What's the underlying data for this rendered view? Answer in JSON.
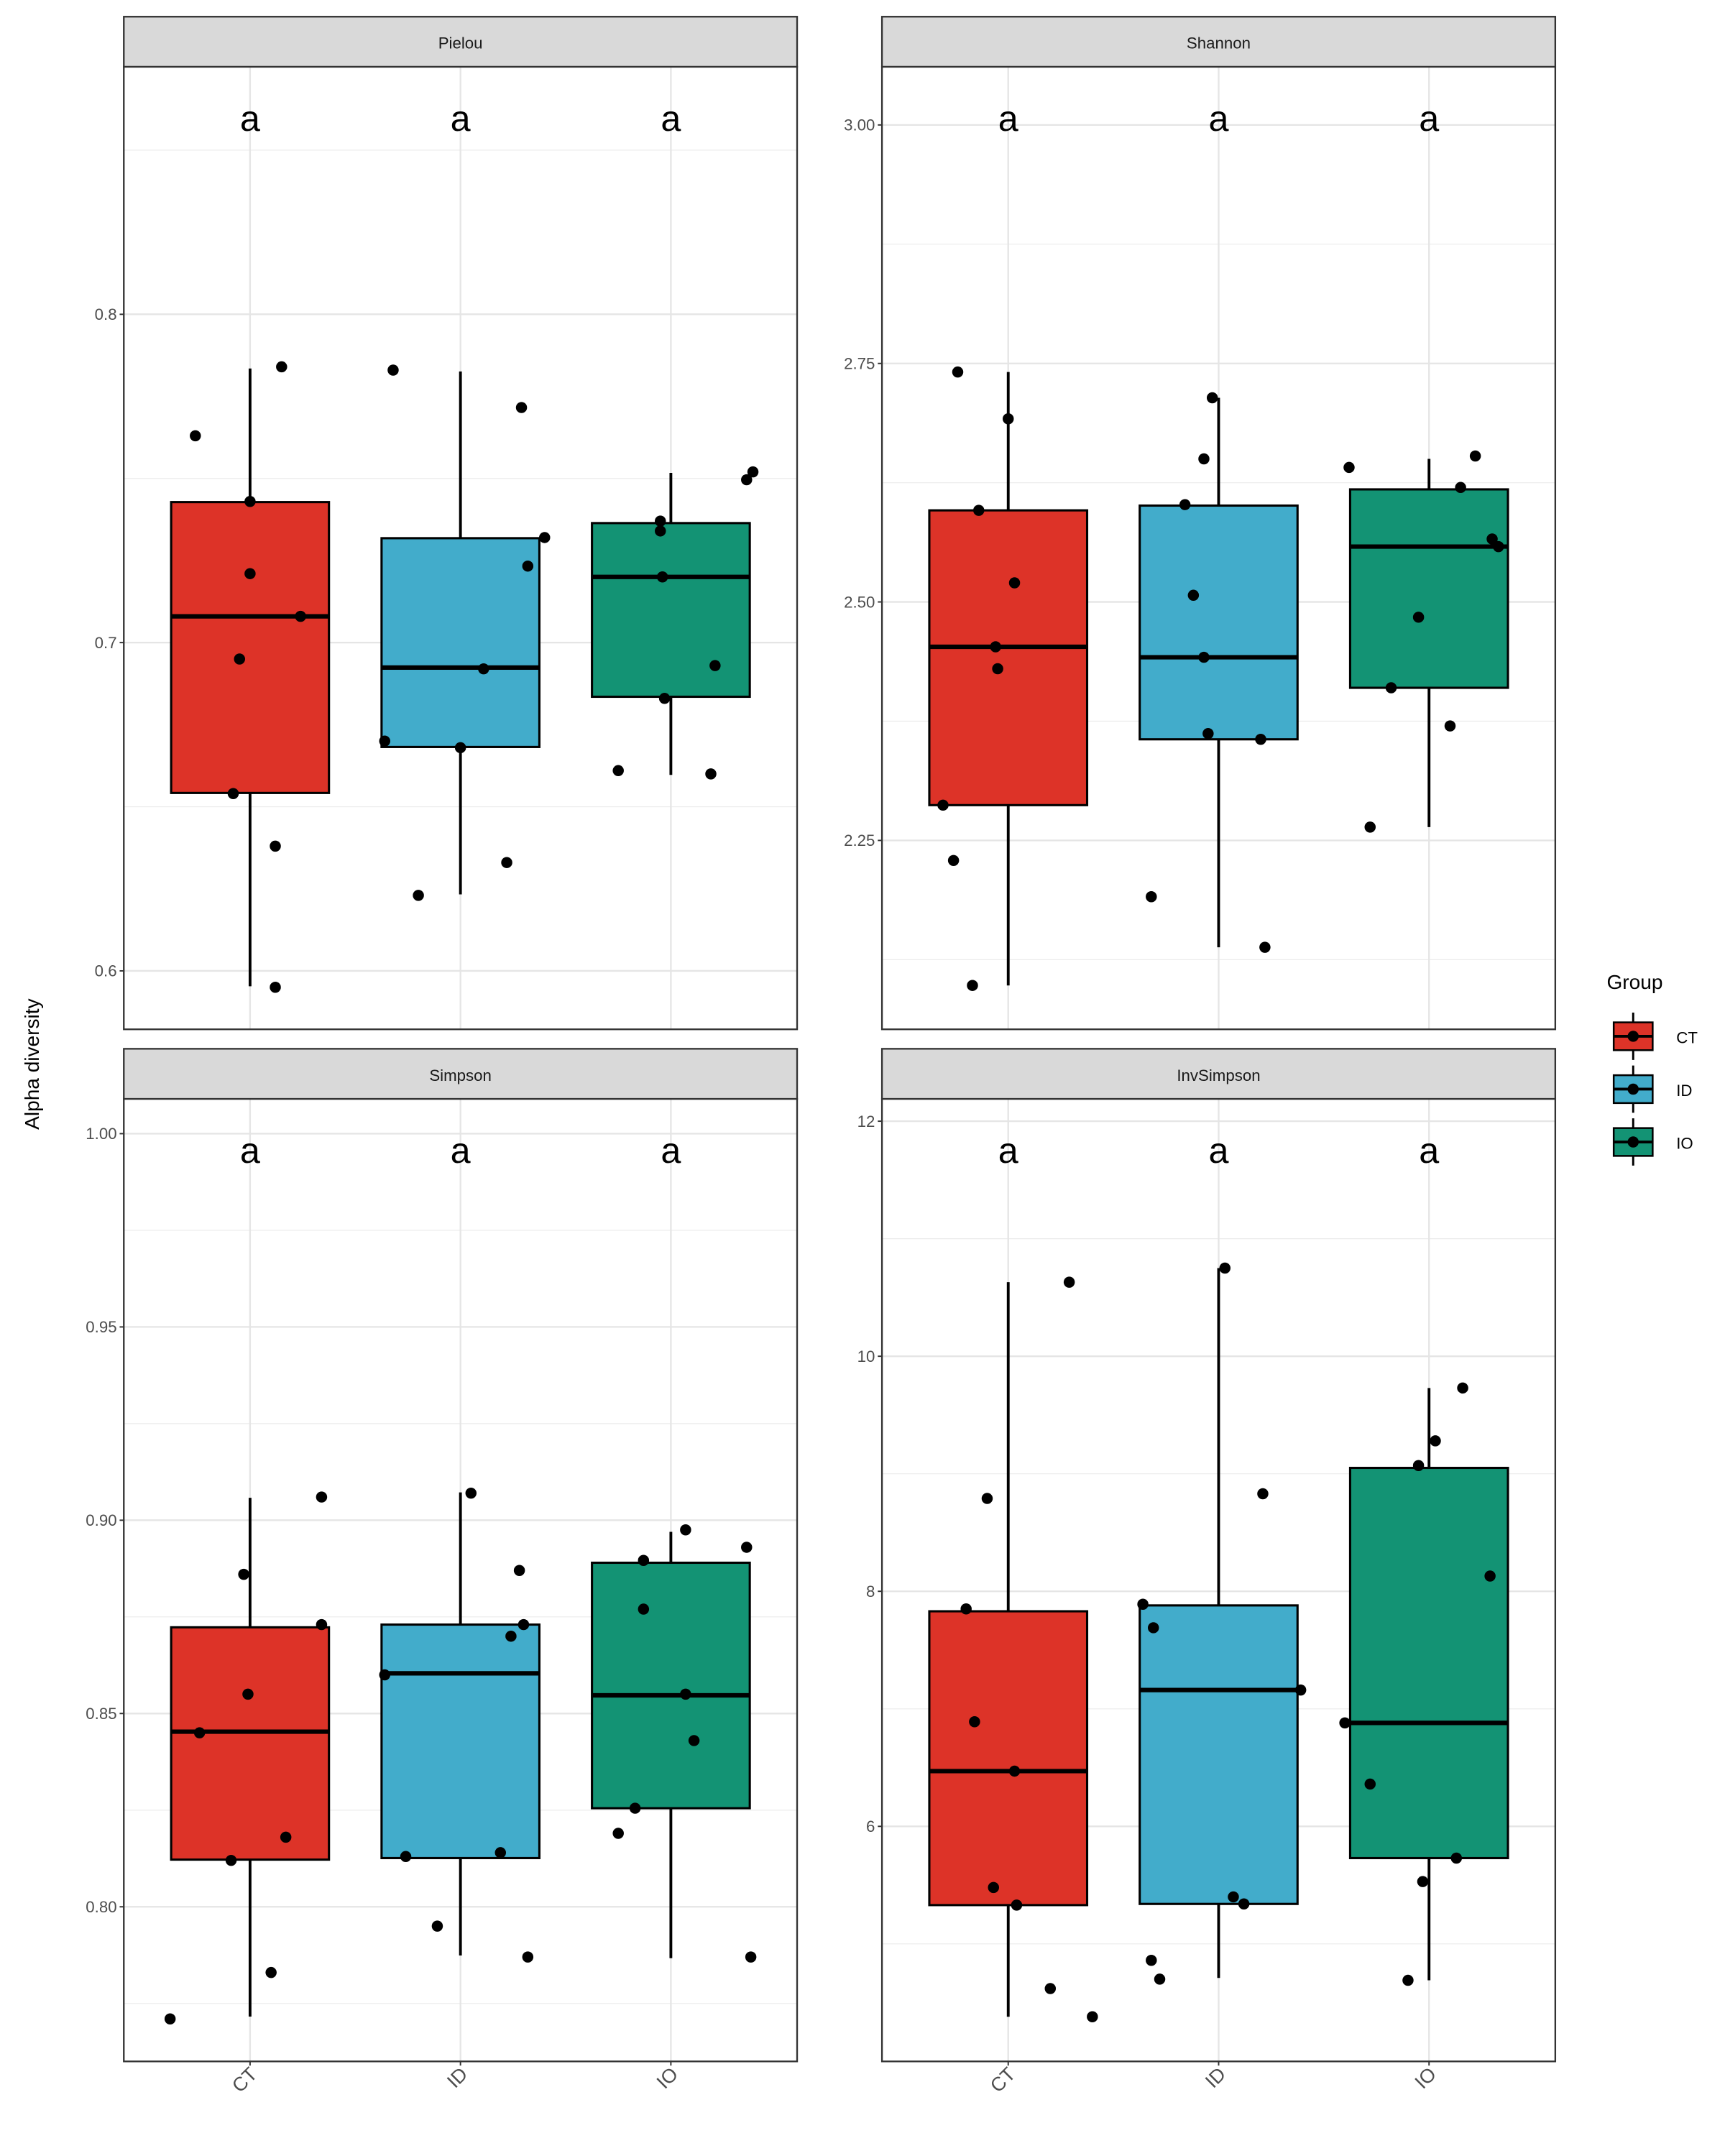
{
  "ylabel": "Alpha diversity",
  "x_tick_labels": [
    "CT",
    "ID",
    "IO"
  ],
  "legend": {
    "title": "Group",
    "items": [
      {
        "label": "CT",
        "color": "#DD3328"
      },
      {
        "label": "ID",
        "color": "#42ACCB"
      },
      {
        "label": "IO",
        "color": "#139374"
      }
    ]
  },
  "chart_data": [
    {
      "type": "box",
      "title": "Pielou",
      "categories": [
        "CT",
        "ID",
        "IO"
      ],
      "ylim": [
        0.5822,
        0.8754
      ],
      "yticks": [
        0.6,
        0.7,
        0.8
      ],
      "ytick_labels": [
        "0.6",
        "0.7",
        "0.8"
      ],
      "letters": [
        "a",
        "a",
        "a"
      ],
      "boxes": [
        {
          "group": "CT",
          "q1": 0.6542,
          "median": 0.708,
          "q3": 0.7428,
          "whisker_low": 0.5953,
          "whisker_high": 0.7835,
          "points": [
            [
              -0.26,
              0.763
            ],
            [
              0.15,
              0.784
            ],
            [
              0,
              0.743
            ],
            [
              0,
              0.721
            ],
            [
              0.24,
              0.708
            ],
            [
              -0.05,
              0.695
            ],
            [
              -0.08,
              0.654
            ],
            [
              0.12,
              0.638
            ],
            [
              0.12,
              0.595
            ]
          ]
        },
        {
          "group": "ID",
          "q1": 0.6682,
          "median": 0.6924,
          "q3": 0.7318,
          "whisker_low": 0.6233,
          "whisker_high": 0.7826,
          "points": [
            [
              -0.32,
              0.783
            ],
            [
              0.29,
              0.7716
            ],
            [
              0.4,
              0.732
            ],
            [
              0.32,
              0.7233
            ],
            [
              0.11,
              0.692
            ],
            [
              -0.36,
              0.67
            ],
            [
              0,
              0.668
            ],
            [
              0.22,
              0.633
            ],
            [
              -0.2,
              0.623
            ]
          ]
        },
        {
          "group": "IO",
          "q1": 0.6835,
          "median": 0.72,
          "q3": 0.7364,
          "whisker_low": 0.6597,
          "whisker_high": 0.7517,
          "points": [
            [
              0.39,
              0.752
            ],
            [
              0.36,
              0.7496
            ],
            [
              -0.05,
              0.737
            ],
            [
              -0.05,
              0.734
            ],
            [
              -0.04,
              0.72
            ],
            [
              0.21,
              0.693
            ],
            [
              -0.03,
              0.683
            ],
            [
              -0.25,
              0.661
            ],
            [
              0.19,
              0.66
            ]
          ]
        }
      ]
    },
    {
      "type": "box",
      "title": "Shannon",
      "categories": [
        "CT",
        "ID",
        "IO"
      ],
      "ylim": [
        2.052,
        3.061
      ],
      "yticks": [
        2.25,
        2.5,
        2.75,
        3.0
      ],
      "ytick_labels": [
        "2.25",
        "2.50",
        "2.75",
        "3.00"
      ],
      "letters": [
        "a",
        "a",
        "a"
      ],
      "boxes": [
        {
          "group": "CT",
          "q1": 2.287,
          "median": 2.453,
          "q3": 2.596,
          "whisker_low": 2.098,
          "whisker_high": 2.741,
          "points": [
            [
              -0.24,
              2.741
            ],
            [
              0,
              2.692
            ],
            [
              -0.14,
              2.596
            ],
            [
              0.03,
              2.52
            ],
            [
              -0.06,
              2.453
            ],
            [
              -0.05,
              2.43
            ],
            [
              -0.31,
              2.287
            ],
            [
              -0.26,
              2.229
            ],
            [
              -0.17,
              2.098
            ]
          ]
        },
        {
          "group": "ID",
          "q1": 2.356,
          "median": 2.442,
          "q3": 2.601,
          "whisker_low": 2.138,
          "whisker_high": 2.714,
          "points": [
            [
              -0.03,
              2.714
            ],
            [
              -0.07,
              2.65
            ],
            [
              -0.16,
              2.602
            ],
            [
              -0.12,
              2.507
            ],
            [
              -0.07,
              2.442
            ],
            [
              -0.05,
              2.362
            ],
            [
              0.2,
              2.356
            ],
            [
              -0.32,
              2.191
            ],
            [
              0.22,
              2.138
            ]
          ]
        },
        {
          "group": "IO",
          "q1": 2.41,
          "median": 2.558,
          "q3": 2.618,
          "whisker_low": 2.264,
          "whisker_high": 2.65,
          "points": [
            [
              -0.38,
              2.641
            ],
            [
              0.22,
              2.653
            ],
            [
              0.15,
              2.62
            ],
            [
              0.3,
              2.566
            ],
            [
              0.33,
              2.558
            ],
            [
              -0.05,
              2.484
            ],
            [
              -0.18,
              2.41
            ],
            [
              0.1,
              2.37
            ],
            [
              -0.28,
              2.264
            ]
          ]
        }
      ]
    },
    {
      "type": "box",
      "title": "Simpson",
      "categories": [
        "CT",
        "ID",
        "IO"
      ],
      "ylim": [
        0.76,
        1.009
      ],
      "yticks": [
        0.8,
        0.85,
        0.9,
        0.95,
        1.0
      ],
      "ytick_labels": [
        "0.80",
        "0.85",
        "0.90",
        "0.95",
        "1.00"
      ],
      "letters": [
        "a",
        "a",
        "a"
      ],
      "boxes": [
        {
          "group": "CT",
          "q1": 0.8122,
          "median": 0.8453,
          "q3": 0.8723,
          "whisker_low": 0.7716,
          "whisker_high": 0.9058,
          "points": [
            [
              0.34,
              0.906
            ],
            [
              -0.03,
              0.886
            ],
            [
              0.34,
              0.873
            ],
            [
              -0.01,
              0.855
            ],
            [
              -0.24,
              0.845
            ],
            [
              0.17,
              0.818
            ],
            [
              -0.09,
              0.812
            ],
            [
              0.1,
              0.783
            ],
            [
              -0.38,
              0.771
            ]
          ]
        },
        {
          "group": "ID",
          "q1": 0.8126,
          "median": 0.8604,
          "q3": 0.873,
          "whisker_low": 0.7874,
          "whisker_high": 0.9072,
          "points": [
            [
              0.05,
              0.907
            ],
            [
              0.28,
              0.887
            ],
            [
              0.3,
              0.873
            ],
            [
              0.24,
              0.87
            ],
            [
              -0.36,
              0.86
            ],
            [
              0.19,
              0.814
            ],
            [
              -0.26,
              0.813
            ],
            [
              -0.11,
              0.795
            ],
            [
              0.32,
              0.787
            ]
          ]
        },
        {
          "group": "IO",
          "q1": 0.8255,
          "median": 0.8547,
          "q3": 0.889,
          "whisker_low": 0.7867,
          "whisker_high": 0.897,
          "points": [
            [
              0.07,
              0.8975
            ],
            [
              0.36,
              0.893
            ],
            [
              -0.13,
              0.8896
            ],
            [
              -0.13,
              0.877
            ],
            [
              0.07,
              0.855
            ],
            [
              0.11,
              0.843
            ],
            [
              -0.17,
              0.8255
            ],
            [
              -0.25,
              0.819
            ],
            [
              0.38,
              0.787
            ]
          ]
        }
      ]
    },
    {
      "type": "box",
      "title": "InvSimpson",
      "categories": [
        "CT",
        "ID",
        "IO"
      ],
      "ylim": [
        4.0,
        12.19
      ],
      "yticks": [
        6,
        8,
        10,
        12
      ],
      "ytick_labels": [
        "6",
        "8",
        "10",
        "12"
      ],
      "letters": [
        "a",
        "a",
        "a"
      ],
      "boxes": [
        {
          "group": "CT",
          "q1": 5.33,
          "median": 6.47,
          "q3": 7.83,
          "whisker_low": 4.38,
          "whisker_high": 10.63,
          "points": [
            [
              0.29,
              10.63
            ],
            [
              -0.1,
              8.79
            ],
            [
              -0.2,
              7.85
            ],
            [
              -0.16,
              6.89
            ],
            [
              0.03,
              6.47
            ],
            [
              -0.07,
              5.48
            ],
            [
              0.04,
              5.33
            ],
            [
              0.2,
              4.62
            ],
            [
              0.4,
              4.38
            ]
          ]
        },
        {
          "group": "ID",
          "q1": 5.34,
          "median": 7.16,
          "q3": 7.88,
          "whisker_low": 4.71,
          "whisker_high": 10.75,
          "points": [
            [
              0.03,
              10.75
            ],
            [
              0.21,
              8.83
            ],
            [
              -0.36,
              7.89
            ],
            [
              -0.31,
              7.69
            ],
            [
              0.39,
              7.16
            ],
            [
              0.07,
              5.4
            ],
            [
              0.12,
              5.34
            ],
            [
              -0.32,
              4.86
            ],
            [
              -0.28,
              4.7
            ]
          ]
        },
        {
          "group": "IO",
          "q1": 5.73,
          "median": 6.88,
          "q3": 9.05,
          "whisker_low": 4.69,
          "whisker_high": 9.73,
          "points": [
            [
              0.16,
              9.73
            ],
            [
              0.03,
              9.28
            ],
            [
              -0.05,
              9.07
            ],
            [
              0.29,
              8.13
            ],
            [
              -0.4,
              6.88
            ],
            [
              -0.28,
              6.36
            ],
            [
              0.13,
              5.73
            ],
            [
              -0.03,
              5.53
            ],
            [
              -0.1,
              4.69
            ]
          ]
        }
      ]
    }
  ]
}
